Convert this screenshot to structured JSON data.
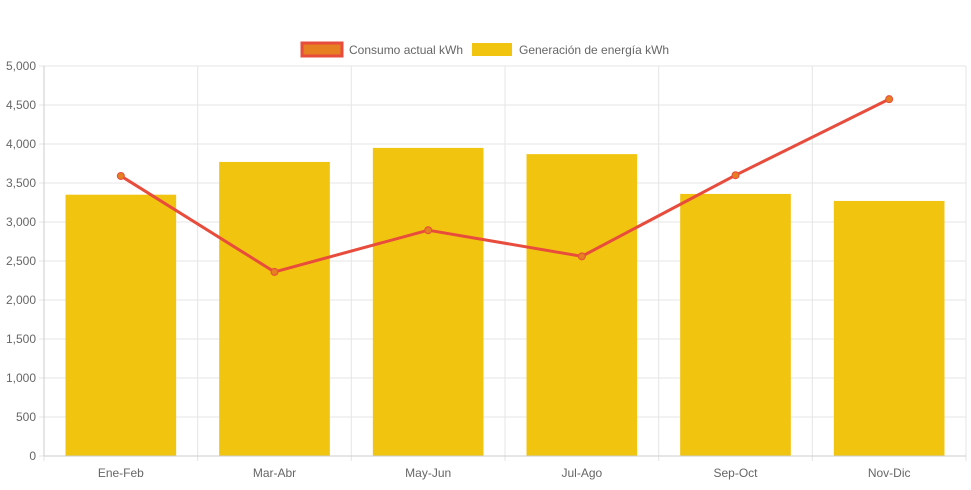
{
  "legend": {
    "items": [
      {
        "label": "Consumo actual kWh",
        "color": "#e74c3c",
        "fill": "#e67e22"
      },
      {
        "label": "Generación de energía kWh",
        "color": "#f1c40f",
        "fill": "#f1c40f"
      }
    ]
  },
  "chart_data": {
    "type": "bar",
    "categories": [
      "Ene-Feb",
      "Mar-Abr",
      "May-Jun",
      "Jul-Ago",
      "Sep-Oct",
      "Nov-Dic"
    ],
    "series": [
      {
        "name": "Consumo actual kWh",
        "type": "line",
        "color": "#e74c3c",
        "values": [
          3590,
          2360,
          2895,
          2560,
          3600,
          4575
        ]
      },
      {
        "name": "Generación de energía kWh",
        "type": "bar",
        "color": "#f1c40f",
        "values": [
          3350,
          3770,
          3950,
          3870,
          3360,
          3270
        ]
      }
    ],
    "ylim": [
      0,
      5000
    ],
    "yticks": [
      "0",
      "500",
      "1,000",
      "1,500",
      "2,000",
      "2,500",
      "3,000",
      "3,500",
      "4,000",
      "4,500",
      "5,000"
    ],
    "grid": true,
    "legend_position": "top"
  }
}
